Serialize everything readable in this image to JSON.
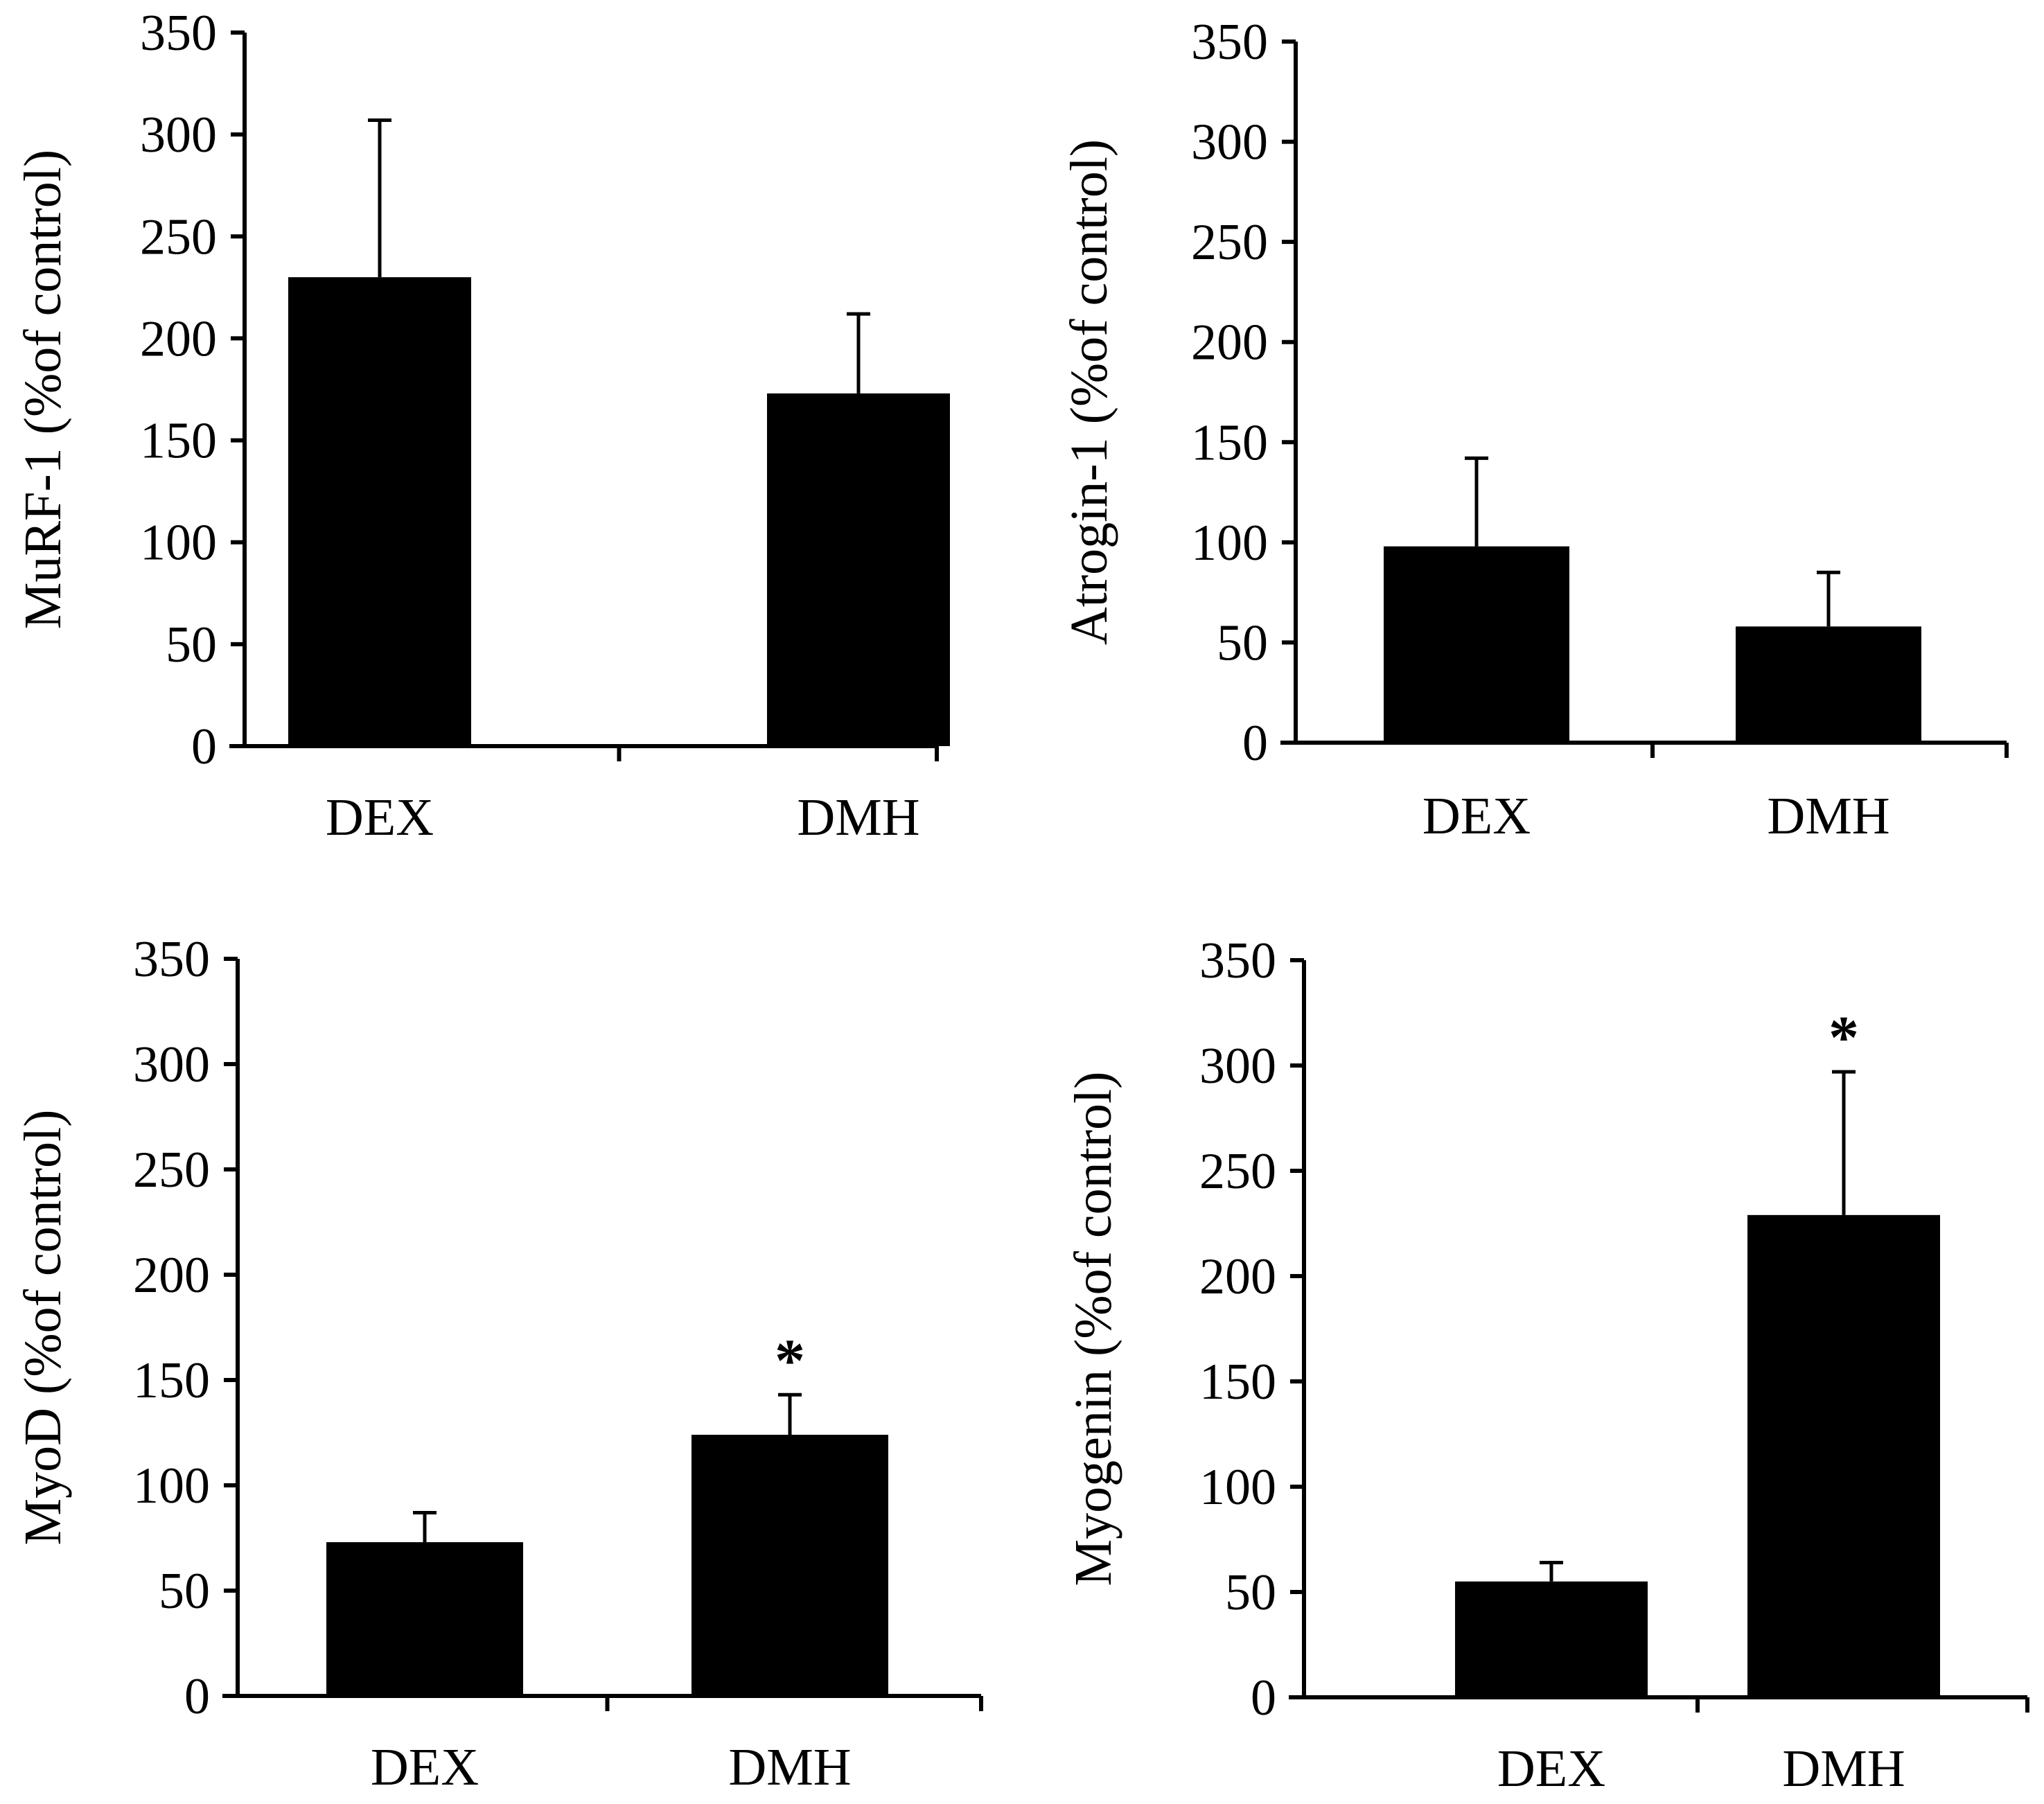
{
  "chart_data": [
    {
      "type": "bar",
      "ylabel": "MuRF-1 (%of control)",
      "categories": [
        "DEX",
        "DMH"
      ],
      "values": [
        230,
        173
      ],
      "errors": [
        77,
        39
      ],
      "significance": [
        "",
        ""
      ],
      "ylim": [
        0,
        350
      ],
      "yticks": [
        "0",
        "50",
        "100",
        "150",
        "200",
        "250",
        "300",
        "350"
      ],
      "bar_color": "#000000"
    },
    {
      "type": "bar",
      "ylabel": "Atrogin-1 (%of control)",
      "categories": [
        "DEX",
        "DMH"
      ],
      "values": [
        98,
        58
      ],
      "errors": [
        44,
        27
      ],
      "significance": [
        "",
        ""
      ],
      "ylim": [
        0,
        350
      ],
      "yticks": [
        "0",
        "50",
        "100",
        "150",
        "200",
        "250",
        "300",
        "350"
      ],
      "bar_color": "#000000"
    },
    {
      "type": "bar",
      "ylabel": "MyoD (%of control)",
      "categories": [
        "DEX",
        "DMH"
      ],
      "values": [
        73,
        124
      ],
      "errors": [
        14,
        19
      ],
      "significance": [
        "",
        "*"
      ],
      "ylim": [
        0,
        350
      ],
      "yticks": [
        "0",
        "50",
        "100",
        "150",
        "200",
        "250",
        "300",
        "350"
      ],
      "bar_color": "#000000"
    },
    {
      "type": "bar",
      "ylabel": "Myogenin (%of control)",
      "categories": [
        "DEX",
        "DMH"
      ],
      "values": [
        55,
        229
      ],
      "errors": [
        9,
        68
      ],
      "significance": [
        "",
        "*"
      ],
      "ylim": [
        0,
        350
      ],
      "yticks": [
        "0",
        "50",
        "100",
        "150",
        "200",
        "250",
        "300",
        "350"
      ],
      "bar_color": "#000000"
    }
  ]
}
